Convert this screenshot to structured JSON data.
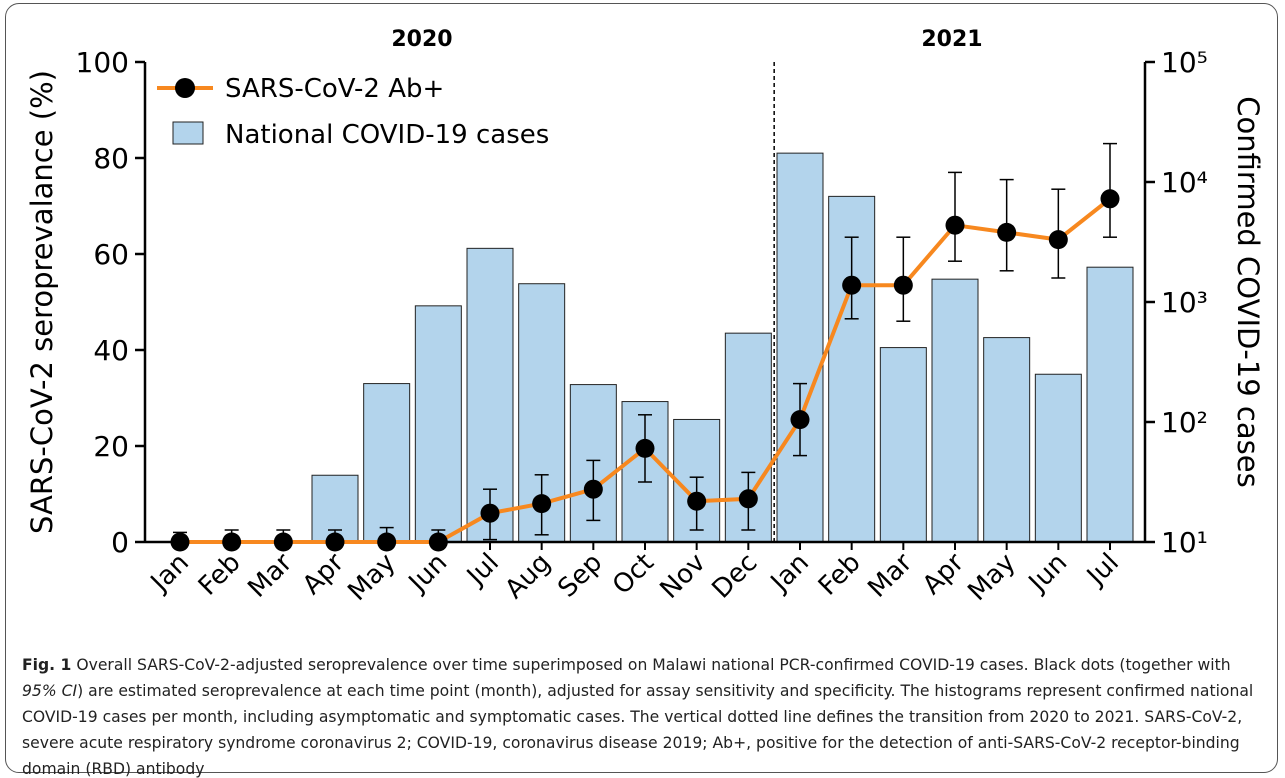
{
  "chart_data": {
    "type": "combo",
    "year_labels": [
      "2020",
      "2021"
    ],
    "y_label": "SARS-CoV-2 seroprevalance (%)",
    "y2_label": "Confirmed COVID-19 cases",
    "categories": [
      "Jan",
      "Feb",
      "Mar",
      "Apr",
      "May",
      "Jun",
      "Jul",
      "Aug",
      "Sep",
      "Oct",
      "Nov",
      "Dec",
      "Jan",
      "Feb",
      "Mar",
      "Apr",
      "May",
      "Jun",
      "Jul"
    ],
    "ylim": [
      0,
      100
    ],
    "yticks": [
      0,
      20,
      40,
      60,
      80,
      100
    ],
    "y2lim": [
      10,
      100000
    ],
    "y2scale": "log",
    "y2ticks": [
      {
        "value": 10,
        "label": "10¹"
      },
      {
        "value": 100,
        "label": "10²"
      },
      {
        "value": 1000,
        "label": "10³"
      },
      {
        "value": 10000,
        "label": "10⁴"
      },
      {
        "value": 100000,
        "label": "10⁵"
      }
    ],
    "legend": "upper left",
    "series": [
      {
        "name": "SARS-CoV-2 Ab+",
        "type": "line",
        "color": "#f7881f",
        "values": [
          0,
          0,
          0,
          0,
          0,
          0,
          6,
          8,
          11,
          19.5,
          8.5,
          9,
          25.5,
          53.5,
          53.5,
          66,
          64.5,
          63,
          71.5
        ],
        "lower": [
          0,
          0,
          0,
          0,
          0,
          0,
          0.5,
          1.5,
          4.5,
          12.5,
          2.5,
          2.5,
          18,
          46.5,
          46,
          58.5,
          56.5,
          55,
          63.5
        ],
        "upper": [
          2,
          2.5,
          2.5,
          2.5,
          3,
          2.5,
          11,
          14,
          17,
          26.5,
          13.5,
          14.5,
          33,
          63.5,
          63.5,
          77,
          75.5,
          73.5,
          83
        ]
      },
      {
        "name": "National COVID-19 cases",
        "type": "bar",
        "color": "#b3d4ec",
        "axis": "y2",
        "values": [
          null,
          null,
          null,
          36,
          209,
          929,
          2800,
          1420,
          205,
          148,
          105,
          550,
          17400,
          7590,
          417,
          1550,
          505,
          250,
          1950
        ]
      }
    ],
    "caption": {
      "label": "Fig. 1",
      "parts": [
        " Overall SARS-CoV-2-adjusted seroprevalence over time superimposed on Malawi national PCR-confirmed COVID-19 cases. Black dots (together with ",
        "95% CI",
        ") are estimated seroprevalence at each time point (month), adjusted for assay sensitivity and specificity. The histograms represent confirmed national COVID-19 cases per month, including asymptomatic and symptomatic cases. The vertical dotted line defines the transition from 2020 to 2021. SARS-CoV-2, severe acute respiratory syndrome coronavirus 2; COVID-19, coronavirus disease 2019; Ab+, positive for the detection of anti-SARS-CoV-2 receptor-binding domain (RBD) antibody"
      ]
    }
  }
}
